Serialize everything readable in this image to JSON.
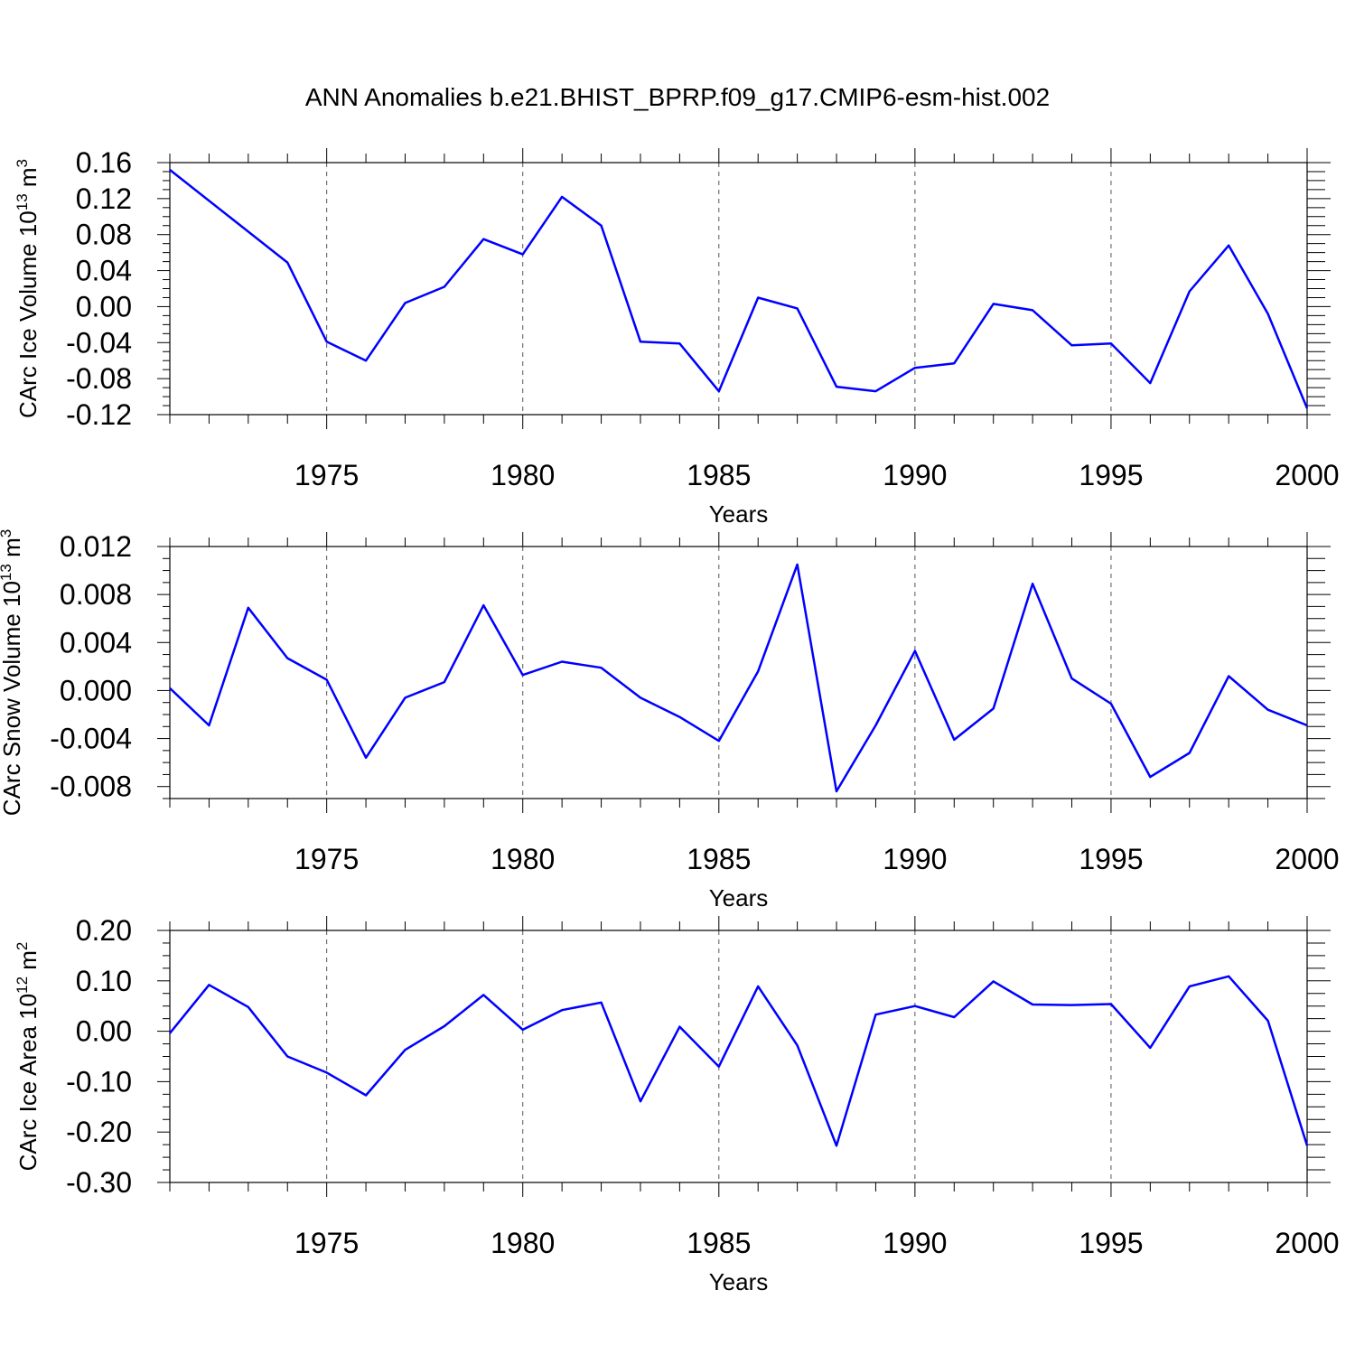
{
  "title": "ANN Anomalies b.e21.BHIST_BPRP.f09_g17.CMIP6-esm-hist.002",
  "line_color": "#0000ff",
  "chart_data": [
    {
      "type": "line",
      "ylabel": "CArc Ice Volume 10",
      "ylabel_exp": "13",
      "ylabel_unit": "m",
      "ylabel_unit_exp": "3",
      "xlabel": "Years",
      "xlim": [
        1971,
        2000
      ],
      "ylim": [
        -0.12,
        0.16
      ],
      "yticks": [
        "0.16",
        "0.12",
        "0.08",
        "0.04",
        "0.00",
        "-0.04",
        "-0.08",
        "-0.12"
      ],
      "ytick_values": [
        0.16,
        0.12,
        0.08,
        0.04,
        0.0,
        -0.04,
        -0.08,
        -0.12
      ],
      "xticks": [
        "1975",
        "1980",
        "1985",
        "1990",
        "1995",
        "2000"
      ],
      "xtick_values": [
        1975,
        1980,
        1985,
        1990,
        1995,
        2000
      ],
      "grid_x": true,
      "x": [
        1971,
        1974,
        1975,
        1976,
        1977,
        1978,
        1979,
        1980,
        1981,
        1982,
        1983,
        1984,
        1985,
        1986,
        1987,
        1988,
        1989,
        1990,
        1991,
        1992,
        1993,
        1994,
        1995,
        1996,
        1997,
        1998,
        1999,
        2000
      ],
      "y": [
        0.152,
        0.049,
        -0.039,
        -0.06,
        0.004,
        0.022,
        0.075,
        0.058,
        0.122,
        0.09,
        -0.039,
        -0.041,
        -0.094,
        0.01,
        -0.002,
        -0.089,
        -0.094,
        -0.068,
        -0.063,
        0.003,
        -0.004,
        -0.043,
        -0.041,
        -0.085,
        0.017,
        0.068,
        -0.008,
        -0.113
      ]
    },
    {
      "type": "line",
      "ylabel": "CArc Snow Volume 10",
      "ylabel_exp": "13",
      "ylabel_unit": "m",
      "ylabel_unit_exp": "3",
      "xlabel": "Years",
      "xlim": [
        1971,
        2000
      ],
      "ylim": [
        -0.009,
        0.012
      ],
      "yticks": [
        "0.012",
        "0.008",
        "0.004",
        "0.000",
        "-0.004",
        "-0.008"
      ],
      "ytick_values": [
        0.012,
        0.008,
        0.004,
        0.0,
        -0.004,
        -0.008
      ],
      "xticks": [
        "1975",
        "1980",
        "1985",
        "1990",
        "1995",
        "2000"
      ],
      "xtick_values": [
        1975,
        1980,
        1985,
        1990,
        1995,
        2000
      ],
      "grid_x": true,
      "x": [
        1971,
        1972,
        1973,
        1974,
        1975,
        1976,
        1977,
        1978,
        1979,
        1980,
        1981,
        1982,
        1983,
        1984,
        1985,
        1986,
        1987,
        1988,
        1989,
        1990,
        1991,
        1992,
        1993,
        1994,
        1995,
        1996,
        1997,
        1998,
        1999,
        2000
      ],
      "y": [
        0.0002,
        -0.0029,
        0.0069,
        0.0027,
        0.0009,
        -0.0056,
        -0.0006,
        0.0007,
        0.0071,
        0.0013,
        0.0024,
        0.0019,
        -0.0006,
        -0.0022,
        -0.0042,
        0.0016,
        0.0105,
        -0.0084,
        -0.0029,
        0.0033,
        -0.0041,
        -0.0015,
        0.0089,
        0.001,
        -0.0011,
        -0.0072,
        -0.0052,
        0.0012,
        -0.0016,
        -0.0029
      ]
    },
    {
      "type": "line",
      "ylabel": "CArc Ice Area 10",
      "ylabel_exp": "12",
      "ylabel_unit": "m",
      "ylabel_unit_exp": "2",
      "xlabel": "Years",
      "xlim": [
        1971,
        2000
      ],
      "ylim": [
        -0.3,
        0.2
      ],
      "yticks": [
        "0.20",
        "0.10",
        "0.00",
        "-0.10",
        "-0.20",
        "-0.30"
      ],
      "ytick_values": [
        0.2,
        0.1,
        0.0,
        -0.1,
        -0.2,
        -0.3
      ],
      "xticks": [
        "1975",
        "1980",
        "1985",
        "1990",
        "1995",
        "2000"
      ],
      "xtick_values": [
        1975,
        1980,
        1985,
        1990,
        1995,
        2000
      ],
      "grid_x": true,
      "x": [
        1971,
        1972,
        1973,
        1974,
        1975,
        1976,
        1977,
        1978,
        1979,
        1980,
        1981,
        1982,
        1983,
        1984,
        1985,
        1986,
        1987,
        1988,
        1989,
        1990,
        1991,
        1992,
        1993,
        1994,
        1995,
        1996,
        1997,
        1998,
        1999,
        2000
      ],
      "y": [
        -0.004,
        0.092,
        0.048,
        -0.05,
        -0.082,
        -0.127,
        -0.037,
        0.01,
        0.072,
        0.003,
        0.042,
        0.057,
        -0.139,
        0.009,
        -0.07,
        0.089,
        -0.028,
        -0.227,
        0.033,
        0.05,
        0.028,
        0.099,
        0.053,
        0.052,
        0.054,
        -0.033,
        0.089,
        0.109,
        0.021,
        -0.227
      ]
    }
  ]
}
